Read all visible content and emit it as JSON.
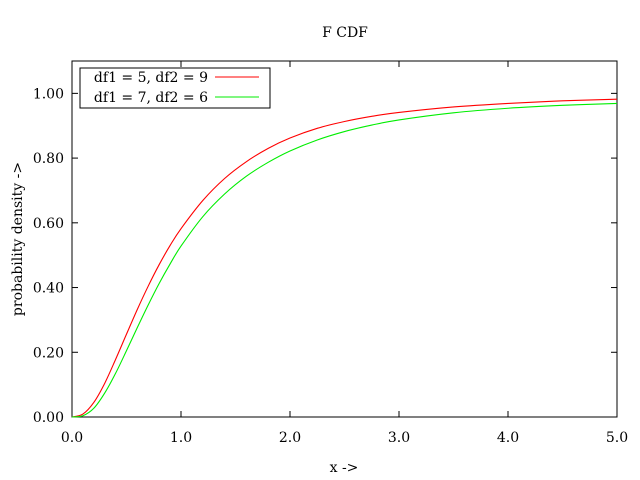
{
  "chart_data": {
    "type": "line",
    "title": "F CDF",
    "xlabel": "x ->",
    "ylabel": "probability density ->",
    "xlim": [
      0,
      5
    ],
    "ylim": [
      0,
      1.1
    ],
    "x_ticks": [
      "0.0",
      "1.0",
      "2.0",
      "3.0",
      "4.0",
      "5.0"
    ],
    "y_ticks": [
      "0.00",
      "0.20",
      "0.40",
      "0.60",
      "0.80",
      "1.00"
    ],
    "grid": false,
    "legend_position": "top-left",
    "x": [
      0,
      0.1,
      0.2,
      0.3,
      0.4,
      0.5,
      0.6,
      0.7,
      0.8,
      0.9,
      1.0,
      1.2,
      1.4,
      1.6,
      1.8,
      2.0,
      2.25,
      2.5,
      2.75,
      3.0,
      3.5,
      4.0,
      4.5,
      5.0
    ],
    "series": [
      {
        "name": "df1 = 5, df2 = 9",
        "color": "#ff0000",
        "values": [
          0,
          0.009,
          0.045,
          0.104,
          0.178,
          0.256,
          0.333,
          0.405,
          0.471,
          0.53,
          0.582,
          0.669,
          0.737,
          0.789,
          0.83,
          0.862,
          0.892,
          0.913,
          0.929,
          0.941,
          0.958,
          0.969,
          0.977,
          0.982
        ]
      },
      {
        "name": "df1 = 7, df2 = 6",
        "color": "#00ee00",
        "values": [
          0,
          0.004,
          0.027,
          0.074,
          0.135,
          0.205,
          0.277,
          0.347,
          0.413,
          0.473,
          0.528,
          0.619,
          0.689,
          0.744,
          0.787,
          0.822,
          0.856,
          0.882,
          0.902,
          0.918,
          0.94,
          0.954,
          0.963,
          0.969
        ]
      }
    ]
  }
}
